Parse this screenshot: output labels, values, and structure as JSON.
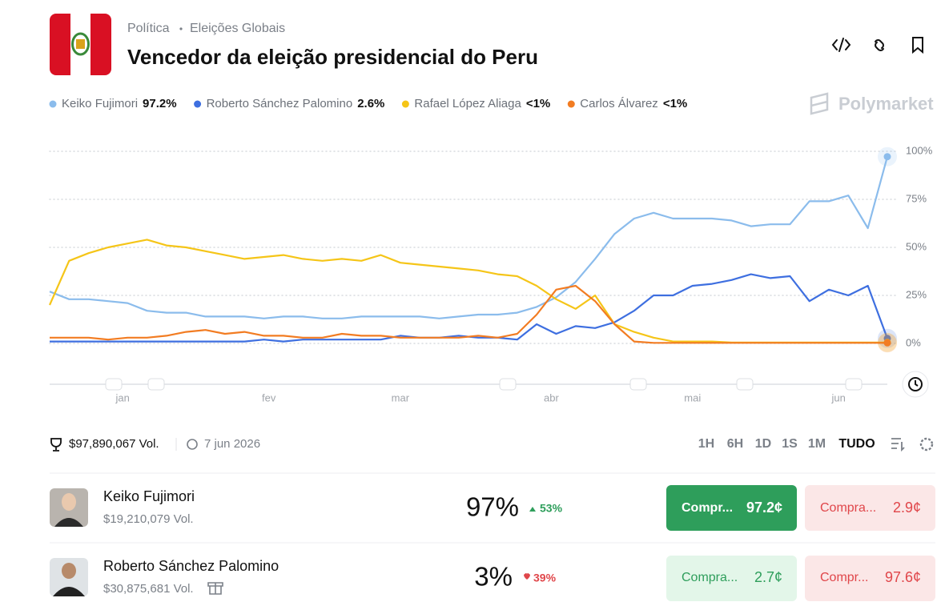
{
  "header": {
    "breadcrumb": [
      "Política",
      "Eleições Globais"
    ],
    "title": "Vencedor da eleição presidencial do Peru"
  },
  "brand": "Polymarket",
  "chart_data": {
    "type": "line",
    "x": [
      0,
      4,
      8,
      12,
      16,
      20,
      24,
      28,
      32,
      36,
      40,
      44,
      48,
      52,
      56,
      60,
      64,
      68,
      72,
      76,
      80,
      84,
      88,
      92,
      96,
      100,
      104,
      108,
      112,
      116,
      120,
      124,
      128,
      132,
      136,
      140,
      144,
      148,
      152,
      156,
      160,
      164,
      168,
      172
    ],
    "xlim": [
      0,
      172
    ],
    "xticks": [
      {
        "value": 15,
        "label": "jan"
      },
      {
        "value": 45,
        "label": "fev"
      },
      {
        "value": 72,
        "label": "mar"
      },
      {
        "value": 103,
        "label": "abr"
      },
      {
        "value": 132,
        "label": "mai"
      },
      {
        "value": 162,
        "label": "jun"
      }
    ],
    "ylim": [
      0,
      100
    ],
    "yticks": [
      {
        "value": 0,
        "label": "0%"
      },
      {
        "value": 25,
        "label": "25%"
      },
      {
        "value": 50,
        "label": "50%"
      },
      {
        "value": 75,
        "label": "75%"
      },
      {
        "value": 100,
        "label": "100%"
      }
    ],
    "grid": true,
    "series": [
      {
        "name": "Keiko Fujimori",
        "legend_label": "97.2%",
        "color": "#8bbcec",
        "values": [
          27,
          23,
          23,
          22,
          21,
          17,
          16,
          16,
          14,
          14,
          14,
          13,
          14,
          14,
          13,
          13,
          14,
          14,
          14,
          14,
          13,
          14,
          15,
          15,
          16,
          19,
          24,
          32,
          44,
          57,
          65,
          68,
          65,
          65,
          65,
          64,
          61,
          62,
          62,
          74,
          74,
          77,
          60,
          97.2
        ]
      },
      {
        "name": "Roberto Sánchez Palomino",
        "legend_label": "2.6%",
        "color": "#3e6fe0",
        "values": [
          1,
          1,
          1,
          1,
          1,
          1,
          1,
          1,
          1,
          1,
          1,
          2,
          1,
          2,
          2,
          2,
          2,
          2,
          4,
          3,
          3,
          4,
          3,
          3,
          2,
          10,
          5,
          9,
          8,
          11,
          17,
          25,
          25,
          30,
          31,
          33,
          36,
          34,
          35,
          22,
          28,
          25,
          30,
          2.6
        ]
      },
      {
        "name": "Rafael López Aliaga",
        "legend_label": "<1%",
        "color": "#f5c518",
        "values": [
          20,
          43,
          47,
          50,
          52,
          54,
          51,
          50,
          48,
          46,
          44,
          45,
          46,
          44,
          43,
          44,
          43,
          46,
          42,
          41,
          40,
          39,
          38,
          36,
          35,
          30,
          23,
          18,
          25,
          10,
          6,
          3,
          1,
          1,
          1,
          0.5,
          0.5,
          0.5,
          0.5,
          0.5,
          0.5,
          0.5,
          0.5,
          0.5
        ]
      },
      {
        "name": "Carlos Álvarez",
        "legend_label": "<1%",
        "color": "#f27c22",
        "values": [
          3,
          3,
          3,
          2,
          3,
          3,
          4,
          6,
          7,
          5,
          6,
          4,
          4,
          3,
          3,
          5,
          4,
          4,
          3,
          3,
          3,
          3,
          4,
          3,
          5,
          15,
          28,
          30,
          22,
          10,
          1,
          0.3,
          0.3,
          0.3,
          0.3,
          0.3,
          0.3,
          0.3,
          0.3,
          0.3,
          0.3,
          0.3,
          0.3,
          0.3
        ]
      }
    ]
  },
  "summary": {
    "volume": "$97,890,067 Vol.",
    "date": "7 jun 2026",
    "ranges": [
      "1H",
      "6H",
      "1D",
      "1S",
      "1M",
      "TUDO"
    ]
  },
  "outcomes": [
    {
      "name": "Keiko Fujimori",
      "volume": "$19,210,079 Vol.",
      "chance": "97%",
      "change": "53%",
      "yes": "Compr...",
      "yes_price": "97.2¢",
      "no": "Compra...",
      "no_price": "2.9¢"
    },
    {
      "name": "Roberto Sánchez Palomino",
      "volume": "$30,875,681 Vol.",
      "chance": "3%",
      "change": "39%",
      "yes": "Compra...",
      "yes_price": "2.7¢",
      "no": "Compr...",
      "no_price": "97.6¢"
    }
  ]
}
